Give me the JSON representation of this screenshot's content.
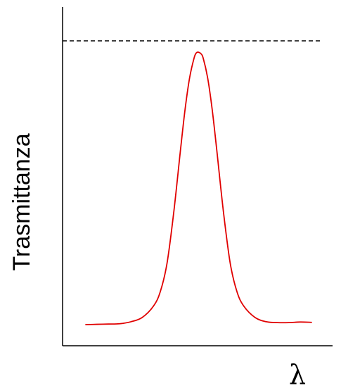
{
  "chart_data": {
    "type": "line",
    "title": "",
    "xlabel": "λ",
    "ylabel": "Trasmittanza",
    "grid": false,
    "legend": "none",
    "x_ticks": false,
    "y_ticks": false,
    "reference_line": {
      "style": "dashed",
      "color": "#000000",
      "y": 1.0
    },
    "series": [
      {
        "color": "#e00000",
        "x": [
          0.0,
          0.05,
          0.1,
          0.15,
          0.2,
          0.25,
          0.3,
          0.33,
          0.36,
          0.39,
          0.42,
          0.44,
          0.46,
          0.48,
          0.49,
          0.5,
          0.51,
          0.52,
          0.54,
          0.56,
          0.58,
          0.61,
          0.64,
          0.67,
          0.7,
          0.75,
          0.8,
          0.85,
          0.9,
          0.95,
          1.0
        ],
        "y": [
          0.005,
          0.006,
          0.007,
          0.008,
          0.015,
          0.03,
          0.07,
          0.12,
          0.22,
          0.4,
          0.62,
          0.76,
          0.87,
          0.94,
          0.958,
          0.96,
          0.955,
          0.94,
          0.87,
          0.76,
          0.62,
          0.4,
          0.22,
          0.12,
          0.07,
          0.03,
          0.015,
          0.012,
          0.012,
          0.014,
          0.013
        ]
      }
    ]
  }
}
